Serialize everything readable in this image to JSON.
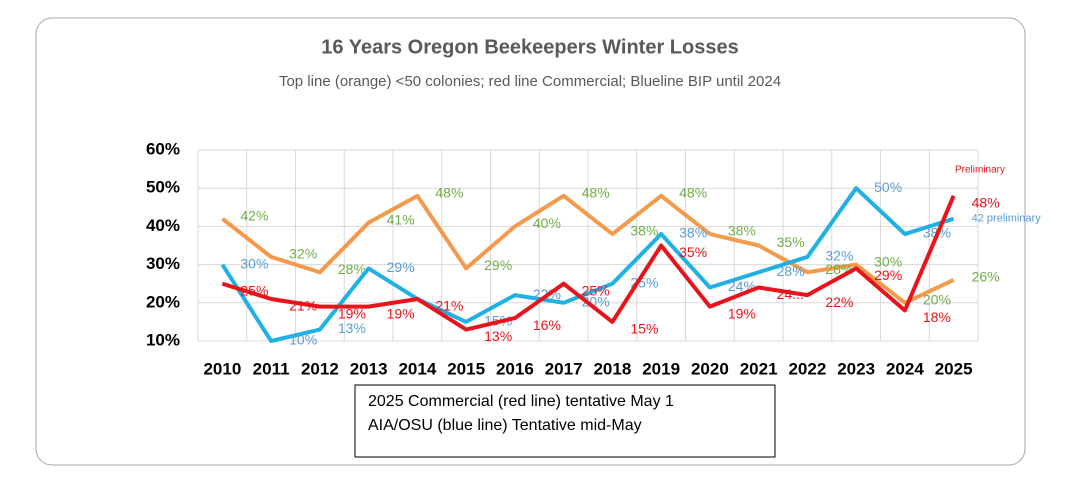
{
  "chart_data": {
    "type": "line",
    "title": "16 Years Oregon Beekeepers Winter Losses",
    "subtitle": "Top line (orange) <50 colonies; red line Commercial; Blueline BIP until 2024",
    "categories": [
      "2010",
      "2011",
      "2012",
      "2013",
      "2014",
      "2015",
      "2016",
      "2017",
      "2018",
      "2019",
      "2020",
      "2021",
      "2022",
      "2023",
      "2024",
      "2025"
    ],
    "ylim": [
      10,
      60
    ],
    "yticks": [
      {
        "value": 10,
        "label": "10%"
      },
      {
        "value": 20,
        "label": "20%"
      },
      {
        "value": 30,
        "label": "30%"
      },
      {
        "value": 40,
        "label": "40%"
      },
      {
        "value": 50,
        "label": "50%"
      },
      {
        "value": 60,
        "label": "60%"
      }
    ],
    "grid": true,
    "series": [
      {
        "name": "<50 colonies",
        "color": "#f39a4c",
        "label_color": "#70ad47",
        "values": [
          42,
          32,
          28,
          41,
          48,
          29,
          40,
          48,
          38,
          48,
          38,
          35,
          28,
          30,
          20,
          26
        ],
        "value_labels": [
          "42%",
          "32%",
          "28%",
          "41%",
          "48%",
          "29%",
          "40%",
          "48%",
          "38%",
          "48%",
          "38%",
          "35%",
          "28%",
          "30%",
          "20%",
          "26%"
        ]
      },
      {
        "name": "BIP",
        "color": "#1fb0e6",
        "label_color": "#5b9bd5",
        "values": [
          30,
          10,
          13,
          29,
          21,
          15,
          22,
          20,
          25,
          38,
          24,
          28,
          32,
          50,
          38,
          42
        ],
        "value_labels": [
          "30%",
          "10%",
          "13%",
          "29%",
          null,
          "15%",
          "22%",
          "20%",
          "25%",
          "38%",
          "24%",
          "28%",
          "32%",
          "50%",
          "38%",
          "42 preliminary"
        ]
      },
      {
        "name": "Commercial",
        "color": "#e8131b",
        "label_color": "#e8131b",
        "values": [
          25,
          21,
          19,
          19,
          21,
          13,
          16,
          25,
          15,
          35,
          19,
          24,
          22,
          29,
          18,
          48
        ],
        "value_labels": [
          "25%",
          "21%",
          "19%",
          "19%",
          "21%",
          "13%",
          "16%",
          "25%",
          "15%",
          "35%",
          "19%",
          "24...",
          "22%",
          "29%",
          "18%",
          "48%"
        ]
      }
    ],
    "annotations": [
      "Preliminary",
      "2025 Commercial (red line) tentative May 1",
      "AIA/OSU (blue line) Tentative mid-May"
    ]
  }
}
